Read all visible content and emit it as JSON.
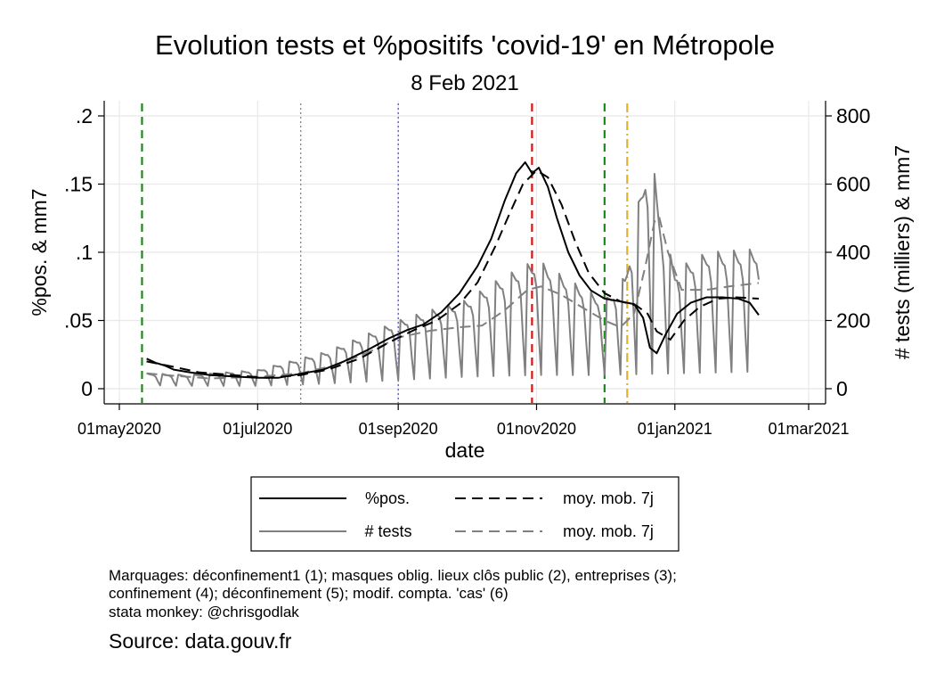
{
  "chart_data": {
    "type": "line",
    "title": "Evolution tests et %positifs 'covid-19' en Métropole",
    "subtitle": "8 Feb 2021",
    "xlabel": "date",
    "ylabel_left": "%pos. & mm7",
    "ylabel_right": "# tests (milliers) & mm7",
    "x_ticks": [
      "01may2020",
      "01jul2020",
      "01sep2020",
      "01nov2020",
      "01jan2021",
      "01mar2021"
    ],
    "y_left_ticks": [
      ".2",
      ".15",
      ".1",
      ".05",
      "0"
    ],
    "y_right_ticks": [
      "800",
      "600",
      "400",
      "200",
      "0"
    ],
    "ylim_left": [
      0,
      0.2
    ],
    "ylim_right": [
      0,
      800
    ],
    "grid": true,
    "legend_position": "bottom",
    "legend": [
      {
        "label": "%pos.",
        "color": "#000000",
        "dash": "solid"
      },
      {
        "label": "moy. mob. 7j",
        "color": "#000000",
        "dash": "dashed"
      },
      {
        "label": "# tests",
        "color": "#808080",
        "dash": "solid"
      },
      {
        "label": "moy. mob. 7j",
        "color": "#808080",
        "dash": "dashed"
      }
    ],
    "markers": [
      {
        "date": "2020-05-11",
        "color": "#1a8a1a",
        "style": "dashed"
      },
      {
        "date": "2020-07-20",
        "color": "#8080a0",
        "style": "dotted"
      },
      {
        "date": "2020-09-01",
        "color": "#5050e0",
        "style": "dotted"
      },
      {
        "date": "2020-10-30",
        "color": "#e01010",
        "style": "dashed"
      },
      {
        "date": "2020-12-01",
        "color": "#1a8a1a",
        "style": "dashed"
      },
      {
        "date": "2020-12-11",
        "color": "#e0b030",
        "style": "dashdot"
      }
    ],
    "series": [
      {
        "name": "%pos.",
        "axis": "left",
        "color": "#000000",
        "points": [
          [
            "2020-05-13",
            0.022
          ],
          [
            "2020-05-17",
            0.019
          ],
          [
            "2020-05-21",
            0.017
          ],
          [
            "2020-05-25",
            0.014
          ],
          [
            "2020-06-01",
            0.012
          ],
          [
            "2020-06-10",
            0.01
          ],
          [
            "2020-06-20",
            0.009
          ],
          [
            "2020-07-01",
            0.008
          ],
          [
            "2020-07-10",
            0.008
          ],
          [
            "2020-07-20",
            0.011
          ],
          [
            "2020-07-30",
            0.014
          ],
          [
            "2020-08-08",
            0.02
          ],
          [
            "2020-08-18",
            0.028
          ],
          [
            "2020-08-28",
            0.037
          ],
          [
            "2020-09-05",
            0.043
          ],
          [
            "2020-09-12",
            0.047
          ],
          [
            "2020-09-20",
            0.056
          ],
          [
            "2020-09-28",
            0.07
          ],
          [
            "2020-10-06",
            0.09
          ],
          [
            "2020-10-12",
            0.11
          ],
          [
            "2020-10-18",
            0.138
          ],
          [
            "2020-10-23",
            0.158
          ],
          [
            "2020-10-27",
            0.166
          ],
          [
            "2020-10-30",
            0.158
          ],
          [
            "2020-11-02",
            0.162
          ],
          [
            "2020-11-06",
            0.148
          ],
          [
            "2020-11-10",
            0.125
          ],
          [
            "2020-11-15",
            0.1
          ],
          [
            "2020-11-20",
            0.083
          ],
          [
            "2020-11-25",
            0.072
          ],
          [
            "2020-12-01",
            0.066
          ],
          [
            "2020-12-08",
            0.064
          ],
          [
            "2020-12-14",
            0.062
          ],
          [
            "2020-12-18",
            0.052
          ],
          [
            "2020-12-21",
            0.03
          ],
          [
            "2020-12-24",
            0.026
          ],
          [
            "2020-12-28",
            0.04
          ],
          [
            "2021-01-02",
            0.055
          ],
          [
            "2021-01-08",
            0.063
          ],
          [
            "2021-01-15",
            0.067
          ],
          [
            "2021-01-22",
            0.067
          ],
          [
            "2021-01-29",
            0.066
          ],
          [
            "2021-02-03",
            0.063
          ],
          [
            "2021-02-07",
            0.054
          ]
        ]
      },
      {
        "name": "moy. mob. 7j",
        "axis": "left",
        "color": "#000000",
        "points": [
          [
            "2020-05-13",
            0.02
          ],
          [
            "2020-05-25",
            0.016
          ],
          [
            "2020-06-05",
            0.012
          ],
          [
            "2020-06-20",
            0.01
          ],
          [
            "2020-07-05",
            0.008
          ],
          [
            "2020-07-20",
            0.01
          ],
          [
            "2020-08-01",
            0.014
          ],
          [
            "2020-08-15",
            0.022
          ],
          [
            "2020-08-28",
            0.034
          ],
          [
            "2020-09-08",
            0.043
          ],
          [
            "2020-09-18",
            0.05
          ],
          [
            "2020-09-28",
            0.062
          ],
          [
            "2020-10-06",
            0.078
          ],
          [
            "2020-10-14",
            0.105
          ],
          [
            "2020-10-20",
            0.128
          ],
          [
            "2020-10-26",
            0.15
          ],
          [
            "2020-11-01",
            0.16
          ],
          [
            "2020-11-06",
            0.155
          ],
          [
            "2020-11-12",
            0.135
          ],
          [
            "2020-11-18",
            0.108
          ],
          [
            "2020-11-24",
            0.085
          ],
          [
            "2020-12-01",
            0.07
          ],
          [
            "2020-12-08",
            0.064
          ],
          [
            "2020-12-15",
            0.061
          ],
          [
            "2020-12-20",
            0.055
          ],
          [
            "2020-12-24",
            0.042
          ],
          [
            "2020-12-30",
            0.036
          ],
          [
            "2021-01-05",
            0.05
          ],
          [
            "2021-01-12",
            0.06
          ],
          [
            "2021-01-20",
            0.066
          ],
          [
            "2021-01-28",
            0.067
          ],
          [
            "2021-02-07",
            0.066
          ]
        ]
      },
      {
        "name": "# tests",
        "axis": "right",
        "color": "#808080",
        "weekly": {
          "start": "2020-05-13",
          "end": "2021-02-07",
          "high": [
            [
              "2020-05-13",
              45
            ],
            [
              "2020-06-01",
              40
            ],
            [
              "2020-07-01",
              55
            ],
            [
              "2020-08-01",
              110
            ],
            [
              "2020-09-01",
              200
            ],
            [
              "2020-09-15",
              230
            ],
            [
              "2020-10-01",
              260
            ],
            [
              "2020-10-15",
              320
            ],
            [
              "2020-11-01",
              380
            ],
            [
              "2020-11-15",
              320
            ],
            [
              "2020-12-01",
              260
            ],
            [
              "2020-12-10",
              330
            ],
            [
              "2020-12-18",
              620
            ],
            [
              "2020-12-21",
              730
            ],
            [
              "2020-12-26",
              480
            ],
            [
              "2021-01-01",
              350
            ],
            [
              "2021-01-15",
              400
            ],
            [
              "2021-02-07",
              410
            ]
          ],
          "low": [
            [
              "2020-05-13",
              10
            ],
            [
              "2020-06-01",
              8
            ],
            [
              "2020-07-01",
              8
            ],
            [
              "2020-08-01",
              15
            ],
            [
              "2020-09-01",
              25
            ],
            [
              "2020-10-01",
              35
            ],
            [
              "2020-11-01",
              40
            ],
            [
              "2020-12-01",
              40
            ],
            [
              "2021-01-01",
              45
            ],
            [
              "2021-02-07",
              50
            ]
          ]
        }
      },
      {
        "name": "moy. mob. 7j",
        "axis": "right",
        "color": "#808080",
        "points": [
          [
            "2020-05-13",
            45
          ],
          [
            "2020-05-25",
            38
          ],
          [
            "2020-06-10",
            30
          ],
          [
            "2020-07-01",
            35
          ],
          [
            "2020-07-20",
            45
          ],
          [
            "2020-08-05",
            70
          ],
          [
            "2020-08-20",
            110
          ],
          [
            "2020-09-01",
            150
          ],
          [
            "2020-09-15",
            170
          ],
          [
            "2020-09-28",
            180
          ],
          [
            "2020-10-08",
            185
          ],
          [
            "2020-10-18",
            230
          ],
          [
            "2020-10-28",
            290
          ],
          [
            "2020-11-03",
            300
          ],
          [
            "2020-11-12",
            275
          ],
          [
            "2020-11-22",
            235
          ],
          [
            "2020-12-01",
            200
          ],
          [
            "2020-12-08",
            180
          ],
          [
            "2020-12-14",
            220
          ],
          [
            "2020-12-19",
            360
          ],
          [
            "2020-12-23",
            490
          ],
          [
            "2020-12-25",
            505
          ],
          [
            "2020-12-29",
            400
          ],
          [
            "2021-01-04",
            290
          ],
          [
            "2021-01-15",
            290
          ],
          [
            "2021-01-25",
            300
          ],
          [
            "2021-02-07",
            310
          ]
        ]
      }
    ]
  },
  "notes": {
    "line1": "Marquages: déconfinement1 (1); masques oblig. lieux clôs public (2), entreprises (3);",
    "line2": "confinement (4); déconfinement (5); modif. compta. 'cas' (6)",
    "line3": "stata monkey: @chrisgodlak"
  },
  "source": "Source: data.gouv.fr"
}
